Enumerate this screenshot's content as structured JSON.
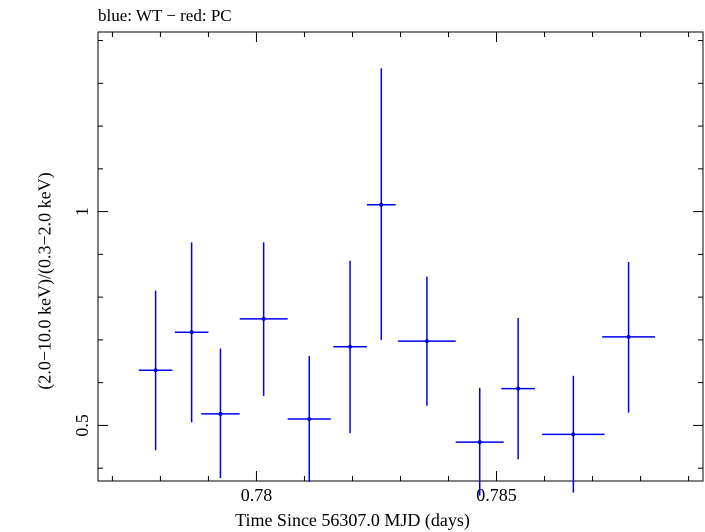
{
  "chart_data": {
    "type": "scatter",
    "title": "blue: WT − red: PC",
    "xlabel": "Time Since 56307.0 MJD (days)",
    "ylabel": "(2.0−10.0 keV)/(0.3−2.0 keV)",
    "xlim": [
      0.7767,
      0.7893
    ],
    "ylim": [
      0.37,
      1.42
    ],
    "xticks": [
      {
        "value": 0.78,
        "label": "0.78"
      },
      {
        "value": 0.785,
        "label": "0.785"
      }
    ],
    "yticks": [
      {
        "value": 0.5,
        "label": "0.5"
      },
      {
        "value": 1.0,
        "label": "1"
      }
    ],
    "grid": false,
    "series": [
      {
        "color": "#0000ee",
        "points": [
          {
            "x": 0.7779,
            "y": 0.629,
            "xerr": 0.00035,
            "ylo": 0.442,
            "yhi": 0.815
          },
          {
            "x": 0.77865,
            "y": 0.718,
            "xerr": 0.00035,
            "ylo": 0.507,
            "yhi": 0.928
          },
          {
            "x": 0.77925,
            "y": 0.527,
            "xerr": 0.0004,
            "ylo": 0.377,
            "yhi": 0.68
          },
          {
            "x": 0.78015,
            "y": 0.749,
            "xerr": 0.0005,
            "ylo": 0.569,
            "yhi": 0.928
          },
          {
            "x": 0.7811,
            "y": 0.515,
            "xerr": 0.00045,
            "ylo": 0.368,
            "yhi": 0.662
          },
          {
            "x": 0.78195,
            "y": 0.684,
            "xerr": 0.00035,
            "ylo": 0.482,
            "yhi": 0.885
          },
          {
            "x": 0.7826,
            "y": 1.016,
            "xerr": 0.0003,
            "ylo": 0.7,
            "yhi": 1.335
          },
          {
            "x": 0.78355,
            "y": 0.697,
            "xerr": 0.0006,
            "ylo": 0.546,
            "yhi": 0.848
          },
          {
            "x": 0.78465,
            "y": 0.461,
            "xerr": 0.0005,
            "ylo": 0.336,
            "yhi": 0.588
          },
          {
            "x": 0.78545,
            "y": 0.586,
            "xerr": 0.00035,
            "ylo": 0.421,
            "yhi": 0.751
          },
          {
            "x": 0.7866,
            "y": 0.479,
            "xerr": 0.00065,
            "ylo": 0.343,
            "yhi": 0.616
          },
          {
            "x": 0.78775,
            "y": 0.707,
            "xerr": 0.00055,
            "ylo": 0.53,
            "yhi": 0.882
          }
        ]
      }
    ]
  }
}
